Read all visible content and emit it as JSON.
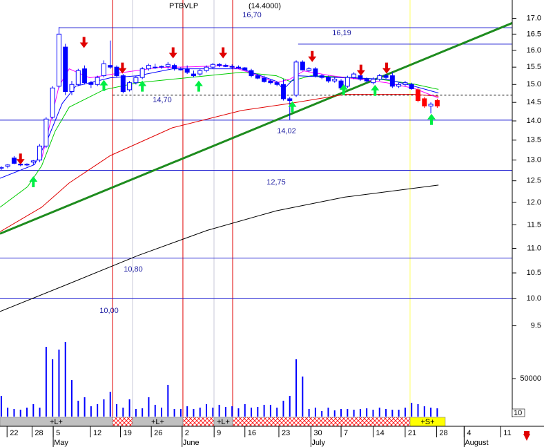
{
  "chart_data": {
    "type": "candlestick",
    "title": "PTBVLP",
    "subtitle": "(14.4000)",
    "xlim": [
      -0.2,
      79.7
    ],
    "xticks": [
      {
        "value": 0.9,
        "label": "22"
      },
      {
        "value": 4.8,
        "label": "28"
      },
      {
        "value": 8.1,
        "label": "5"
      },
      {
        "value": 13.9,
        "label": "12"
      },
      {
        "value": 18.6,
        "label": "19"
      },
      {
        "value": 23.4,
        "label": "26"
      },
      {
        "value": 28.2,
        "label": "2"
      },
      {
        "value": 33.2,
        "label": "9"
      },
      {
        "value": 38.0,
        "label": "16"
      },
      {
        "value": 43.3,
        "label": "23"
      },
      {
        "value": 48.3,
        "label": "30"
      },
      {
        "value": 53.0,
        "label": "7"
      },
      {
        "value": 58.0,
        "label": "14"
      },
      {
        "value": 63.0,
        "label": "21"
      },
      {
        "value": 67.9,
        "label": "28"
      },
      {
        "value": 72.2,
        "label": "4"
      },
      {
        "value": 77.9,
        "label": "11"
      }
    ],
    "months": [
      {
        "value": 8.1,
        "label": "May"
      },
      {
        "value": 28.2,
        "label": "June"
      },
      {
        "value": 48.3,
        "label": "July"
      },
      {
        "value": 72.2,
        "label": "August"
      }
    ],
    "log_scale": true,
    "ylim": [
      8.0,
      17.6
    ],
    "yticks": [
      {
        "value": 17,
        "label": "17.0"
      },
      {
        "value": 16.5,
        "label": "16.5"
      },
      {
        "value": 16,
        "label": "16.0"
      },
      {
        "value": 15.5,
        "label": "15.5"
      },
      {
        "value": 15,
        "label": "15.0"
      },
      {
        "value": 14.5,
        "label": "14.5"
      },
      {
        "value": 14,
        "label": "14.0"
      },
      {
        "value": 13.5,
        "label": "13.5"
      },
      {
        "value": 13,
        "label": "13.0"
      },
      {
        "value": 12.5,
        "label": "12.5"
      },
      {
        "value": 12,
        "label": "12.0"
      },
      {
        "value": 11.5,
        "label": "11.5"
      },
      {
        "value": 11,
        "label": "11.0"
      },
      {
        "value": 10.5,
        "label": "10.5"
      },
      {
        "value": 10,
        "label": "10.0"
      },
      {
        "value": 9.5,
        "label": "9.5"
      }
    ],
    "open": [
      12.8,
      12.85,
      13.05,
      12.9,
      12.88,
      12.95,
      13.0,
      13.35,
      14.1,
      14.95,
      16.1,
      14.8,
      15.0,
      15.45,
      15.05,
      15.0,
      15.25,
      15.55,
      15.5,
      15.25,
      14.85,
      15.05,
      15.2,
      15.45,
      15.5,
      15.5,
      15.52,
      15.55,
      15.45,
      15.45,
      15.3,
      15.3,
      15.4,
      15.5,
      15.58,
      15.55,
      15.52,
      15.5,
      15.48,
      15.4,
      15.25,
      15.18,
      15.1,
      15.05,
      15.0,
      14.6,
      14.7,
      15.65,
      15.4,
      15.45,
      15.25,
      15.2,
      15.1,
      15.1,
      14.95,
      15.2,
      15.25,
      15.15,
      15.05,
      15.15,
      15.25,
      15.25,
      14.95,
      15.0,
      15.0,
      14.85,
      14.6,
      14.4,
      14.55
    ],
    "high": [
      12.85,
      12.9,
      13.1,
      12.95,
      12.92,
      13.0,
      13.4,
      14.1,
      14.95,
      16.72,
      16.2,
      15.1,
      15.45,
      15.55,
      15.1,
      15.25,
      15.7,
      16.3,
      15.55,
      15.3,
      15.1,
      15.25,
      15.5,
      15.6,
      15.6,
      15.55,
      15.65,
      15.6,
      15.5,
      15.55,
      15.4,
      15.45,
      15.55,
      15.62,
      15.62,
      15.6,
      15.58,
      15.55,
      15.5,
      15.45,
      15.3,
      15.25,
      15.15,
      15.1,
      15.15,
      14.65,
      15.7,
      15.7,
      15.5,
      15.5,
      15.3,
      15.25,
      15.2,
      15.15,
      15.25,
      15.35,
      15.3,
      15.2,
      15.2,
      15.3,
      15.3,
      15.35,
      15.05,
      15.1,
      15.05,
      14.9,
      14.65,
      14.5,
      14.6
    ],
    "low": [
      12.75,
      12.8,
      12.9,
      12.85,
      12.85,
      12.88,
      12.95,
      13.3,
      14.05,
      14.9,
      14.7,
      14.7,
      14.95,
      15.0,
      14.9,
      14.95,
      15.2,
      15.45,
      15.2,
      14.75,
      14.8,
      15.0,
      15.15,
      15.4,
      15.45,
      15.45,
      15.45,
      15.4,
      15.4,
      15.3,
      15.2,
      15.25,
      15.35,
      15.45,
      15.5,
      15.5,
      15.45,
      15.45,
      15.4,
      15.2,
      15.15,
      15.05,
      15.0,
      14.95,
      14.55,
      14.03,
      14.65,
      15.4,
      15.35,
      15.2,
      15.15,
      15.05,
      15.05,
      14.85,
      14.9,
      15.15,
      15.1,
      15.05,
      15.0,
      15.1,
      15.15,
      14.9,
      14.9,
      14.95,
      14.85,
      14.5,
      14.35,
      14.2,
      14.35
    ],
    "close": [
      12.82,
      12.88,
      12.92,
      12.88,
      12.9,
      12.98,
      13.35,
      14.05,
      14.9,
      16.5,
      14.8,
      15.0,
      15.4,
      15.05,
      15.0,
      15.2,
      15.6,
      15.5,
      15.25,
      14.8,
      15.05,
      15.2,
      15.45,
      15.55,
      15.5,
      15.52,
      15.58,
      15.45,
      15.42,
      15.35,
      15.25,
      15.4,
      15.5,
      15.58,
      15.55,
      15.52,
      15.5,
      15.48,
      15.42,
      15.25,
      15.18,
      15.08,
      15.05,
      15.0,
      14.6,
      14.55,
      15.65,
      15.42,
      15.45,
      15.25,
      15.2,
      15.1,
      15.15,
      14.9,
      15.2,
      15.3,
      15.15,
      15.1,
      15.15,
      15.25,
      15.2,
      14.95,
      15.0,
      15.05,
      14.88,
      14.55,
      14.4,
      14.45,
      14.4
    ],
    "up_color": "#ffffff",
    "down_color": "#0000ff",
    "recent_down_color": "#ff0000",
    "recent_from": 65,
    "moving_averages": [
      {
        "color": "#000000",
        "x": [
          -0.2,
          10.6,
          21.3,
          32.1,
          42.9,
          53.6,
          68.2
        ],
        "values": [
          9.76,
          10.29,
          10.85,
          11.38,
          11.81,
          12.12,
          12.4
        ]
      },
      {
        "color": "#e00000",
        "x": [
          -0.2,
          6.3,
          10.6,
          17.0,
          26.7,
          37.5,
          45.0,
          53.6,
          64.4,
          68.2
        ],
        "values": [
          11.35,
          11.89,
          12.45,
          13.11,
          13.82,
          14.28,
          14.47,
          14.72,
          14.72,
          14.67
        ]
      },
      {
        "color": "#00cc00",
        "x": [
          -0.2,
          4.1,
          6.3,
          8.4,
          10.6,
          16.0,
          21.3,
          26.7,
          32.1,
          37.5,
          42.9,
          45.0,
          48.3,
          53.6,
          59.0,
          64.4,
          68.2
        ],
        "values": [
          11.89,
          12.36,
          12.86,
          13.73,
          14.37,
          14.85,
          15.05,
          15.15,
          15.25,
          15.35,
          15.25,
          15.09,
          15.25,
          15.21,
          15.15,
          15.01,
          14.86
        ]
      },
      {
        "color": "#0000ff",
        "x": [
          -0.2,
          5.2,
          7.3,
          9.5,
          11.6,
          17.0,
          21.3,
          26.7,
          32.1,
          37.5,
          42.9,
          44.0,
          46.1,
          53.6,
          60.1,
          64.4,
          68.2
        ],
        "values": [
          12.56,
          12.89,
          13.55,
          14.47,
          14.95,
          15.19,
          15.25,
          15.45,
          15.45,
          15.45,
          15.09,
          14.86,
          15.25,
          15.19,
          15.15,
          14.95,
          14.76
        ]
      },
      {
        "color": "#ff00ff",
        "x": [
          6.3,
          9.0,
          10.6,
          13.8,
          19.2,
          24.6,
          30.0,
          35.3,
          38.6,
          42.9,
          45.0,
          47.2,
          51.5,
          55.8,
          60.1,
          64.4,
          68.2
        ],
        "values": [
          13.03,
          14.95,
          15.45,
          15.19,
          15.35,
          15.49,
          15.51,
          15.55,
          15.35,
          15.05,
          15.15,
          15.39,
          15.25,
          15.15,
          15.05,
          14.89,
          14.62
        ]
      }
    ],
    "trendline": {
      "color": "#1e8c1e",
      "x": [
        -0.2,
        79.7
      ],
      "values": [
        11.31,
        16.85
      ]
    },
    "levels": [
      {
        "value": 16.7,
        "label": "16,70",
        "start": 9.0,
        "color": "#1a1ad0"
      },
      {
        "value": 16.19,
        "label": "16,19",
        "start": 46.3,
        "color": "#1a1ad0"
      },
      {
        "value": 14.7,
        "label": "14,70",
        "start": 17.4,
        "color": "#000000",
        "dashed": true
      },
      {
        "value": 14.02,
        "label": "14,02",
        "start": -0.2,
        "color": "#1a1ad0"
      },
      {
        "value": 12.75,
        "label": "12,75",
        "start": -0.2,
        "color": "#1a1ad0"
      },
      {
        "value": 10.8,
        "label": "10,80",
        "start": -0.2,
        "color": "#1a1ad0"
      },
      {
        "value": 10.0,
        "label": "10,00",
        "start": -0.2,
        "color": "#1a1ad0"
      }
    ],
    "vlines": [
      {
        "x": 17.35,
        "color": "#e00000"
      },
      {
        "x": 20.47,
        "color": "#c8c8d8"
      },
      {
        "x": 28.33,
        "color": "#e00000"
      },
      {
        "x": 33.18,
        "color": "#c8c8d8"
      },
      {
        "x": 36.09,
        "color": "#e00000"
      },
      {
        "x": 63.76,
        "color": "#ffff60"
      }
    ],
    "signals": [
      {
        "direction": "down",
        "color": "#e00000",
        "x": [
          3.0,
          12.9,
          18.9,
          26.8,
          34.6,
          48.5,
          56.1,
          60.1
        ],
        "values": [
          12.89,
          16.07,
          15.31,
          15.76,
          15.76,
          15.65,
          15.25,
          15.31
        ]
      },
      {
        "direction": "up",
        "color": "#00ee44",
        "x": [
          5.0,
          16.0,
          22.0,
          30.8,
          45.4,
          53.4,
          58.3,
          67.1
        ],
        "values": [
          12.61,
          15.13,
          15.11,
          15.11,
          14.53,
          15.01,
          14.99,
          14.19
        ]
      }
    ],
    "volume": {
      "color": "#0000ff",
      "ylim": [
        0,
        110000
      ],
      "yticks": [
        50000
      ],
      "values": [
        27300,
        11800,
        10000,
        9100,
        11800,
        16400,
        11800,
        91800,
        75400,
        88200,
        98200,
        48200,
        20900,
        25500,
        13600,
        16400,
        22700,
        32700,
        16400,
        11800,
        22700,
        10000,
        10900,
        25500,
        15500,
        11800,
        41800,
        10000,
        10000,
        13600,
        10000,
        11800,
        16400,
        11800,
        15500,
        12700,
        13600,
        10900,
        16400,
        11800,
        12700,
        15500,
        15500,
        11800,
        20900,
        27300,
        75400,
        52700,
        10000,
        11800,
        7300,
        11800,
        8200,
        10000,
        10000,
        9100,
        10000,
        10900,
        9100,
        11800,
        10000,
        9100,
        9100,
        11800,
        18200,
        16400,
        13600,
        11800,
        10900
      ]
    },
    "band": [
      {
        "start": -0.2,
        "end": 17.35,
        "label": "+L+",
        "color": "#c0c0c0"
      },
      {
        "start": 17.35,
        "end": 20.47,
        "color": "#ff0000",
        "hatched": true
      },
      {
        "start": 20.47,
        "end": 28.33,
        "label": "+L+",
        "color": "#c0c0c0"
      },
      {
        "start": 28.33,
        "end": 33.18,
        "color": "#ff0000",
        "hatched": true
      },
      {
        "start": 33.18,
        "end": 36.09,
        "label": "+L+",
        "color": "#c0c0c0"
      },
      {
        "start": 36.09,
        "end": 63.76,
        "color": "#ff0000",
        "hatched": true
      },
      {
        "start": 63.76,
        "end": 69.25,
        "label": "+S+",
        "color": "#ffff00"
      }
    ],
    "corner_label": "10"
  }
}
